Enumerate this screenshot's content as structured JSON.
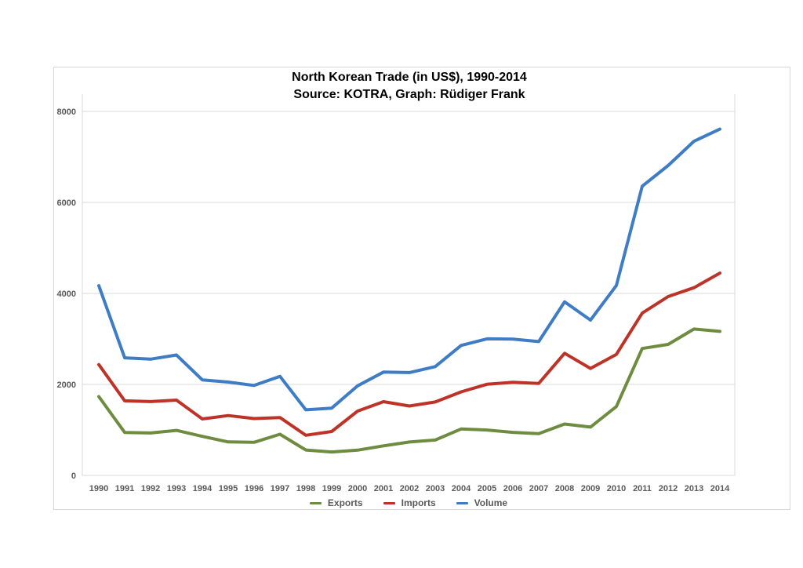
{
  "chart_data": {
    "type": "line",
    "title": "North Korean Trade (in US$), 1990-2014",
    "subtitle": "Source: KOTRA, Graph: Rüdiger Frank",
    "categories": [
      "1990",
      "1991",
      "1992",
      "1993",
      "1994",
      "1995",
      "1996",
      "1997",
      "1998",
      "1999",
      "2000",
      "2001",
      "2002",
      "2003",
      "2004",
      "2005",
      "2006",
      "2007",
      "2008",
      "2009",
      "2010",
      "2011",
      "2012",
      "2013",
      "2014"
    ],
    "series": [
      {
        "name": "Exports",
        "color": "#6E8C3F",
        "values": [
          1733,
          945,
          933,
          990,
          858,
          736,
          727,
          905,
          559,
          515,
          556,
          650,
          735,
          777,
          1020,
          998,
          947,
          919,
          1130,
          1062,
          1513,
          2789,
          2880,
          3218,
          3165
        ]
      },
      {
        "name": "Imports",
        "color": "#BE3328",
        "values": [
          2437,
          1639,
          1622,
          1656,
          1242,
          1316,
          1250,
          1272,
          883,
          965,
          1413,
          1620,
          1525,
          1614,
          1837,
          2003,
          2049,
          2022,
          2685,
          2351,
          2660,
          3568,
          3931,
          4126,
          4446
        ]
      },
      {
        "name": "Volume",
        "color": "#3E7CC5",
        "values": [
          4170,
          2584,
          2555,
          2646,
          2100,
          2052,
          1977,
          2177,
          1442,
          1480,
          1969,
          2270,
          2260,
          2391,
          2857,
          3001,
          2996,
          2941,
          3815,
          3413,
          4174,
          6357,
          6811,
          7345,
          7611
        ]
      }
    ],
    "ylim": [
      0,
      8000
    ],
    "yticks": [
      0,
      2000,
      4000,
      6000,
      8000
    ],
    "grid": true,
    "legend_position": "bottom"
  },
  "colors": {
    "background": "#ffffff",
    "panel_border": "#D7D7D7",
    "grid": "#D9D9D9",
    "axis_text": "#595959",
    "title_text": "#000000"
  }
}
